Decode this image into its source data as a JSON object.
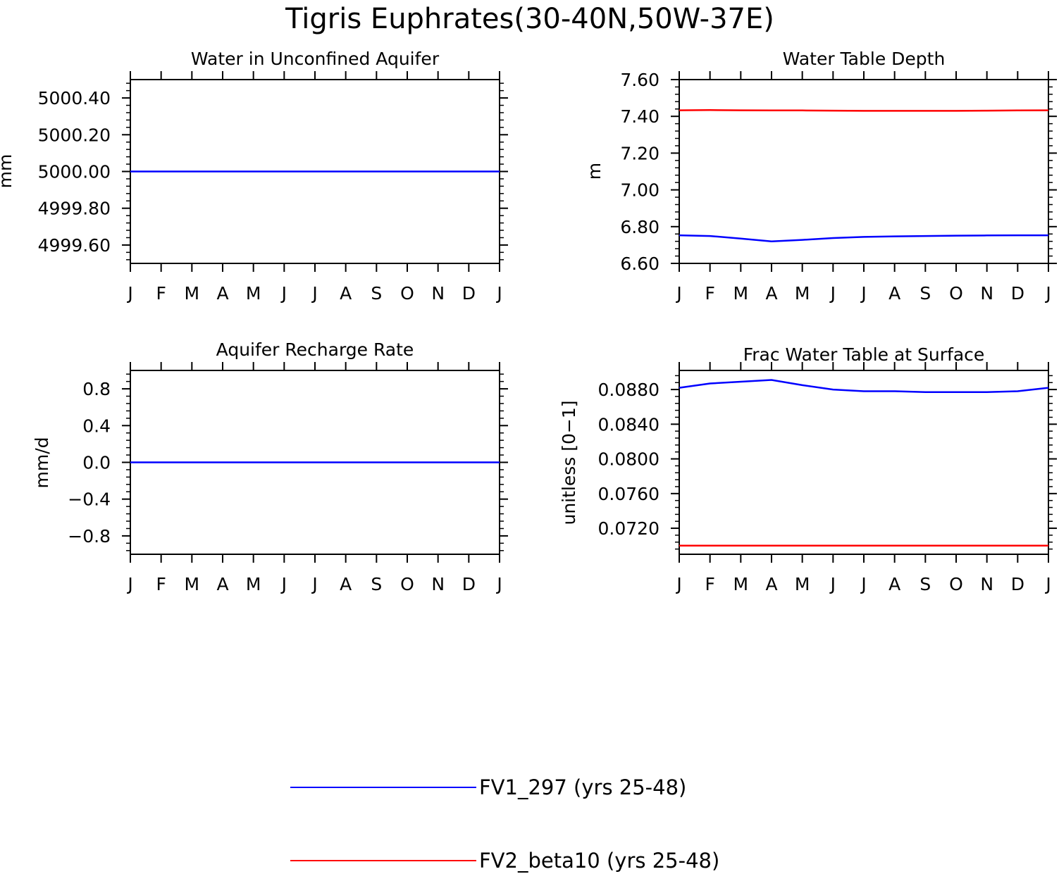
{
  "title": "Tigris Euphrates(30-40N,50W-37E)",
  "colors": {
    "FV1_297": "#0000ff",
    "FV2_beta10": "#ff0000",
    "axis": "#000000"
  },
  "legend": [
    {
      "key": "FV1_297",
      "label": "FV1_297 (yrs 25-48)"
    },
    {
      "key": "FV2_beta10",
      "label": "FV2_beta10 (yrs 25-48)"
    }
  ],
  "chart_data": [
    {
      "type": "line",
      "title": "Water in Unconfined Aquifer",
      "ylabel": "mm",
      "xlabel": "",
      "categories": [
        "J",
        "F",
        "M",
        "A",
        "M",
        "J",
        "J",
        "A",
        "S",
        "O",
        "N",
        "D",
        "J"
      ],
      "ylim": [
        4999.5,
        5000.5
      ],
      "yticks": [
        4999.6,
        4999.8,
        5000.0,
        5000.2,
        5000.4
      ],
      "ytick_labels": [
        "4999.60",
        "4999.80",
        "5000.00",
        "5000.20",
        "5000.40"
      ],
      "series": [
        {
          "name": "FV1_297",
          "values": [
            5000,
            5000,
            5000,
            5000,
            5000,
            5000,
            5000,
            5000,
            5000,
            5000,
            5000,
            5000,
            5000
          ]
        }
      ]
    },
    {
      "type": "line",
      "title": "Water Table Depth",
      "ylabel": "m",
      "xlabel": "",
      "categories": [
        "J",
        "F",
        "M",
        "A",
        "M",
        "J",
        "J",
        "A",
        "S",
        "O",
        "N",
        "D",
        "J"
      ],
      "ylim": [
        6.6,
        7.6
      ],
      "yticks": [
        6.6,
        6.8,
        7.0,
        7.2,
        7.4,
        7.6
      ],
      "ytick_labels": [
        "6.60",
        "6.80",
        "7.00",
        "7.20",
        "7.40",
        "7.60"
      ],
      "series": [
        {
          "name": "FV1_297",
          "values": [
            6.753,
            6.749,
            6.735,
            6.72,
            6.728,
            6.738,
            6.744,
            6.747,
            6.749,
            6.751,
            6.752,
            6.753,
            6.753
          ]
        },
        {
          "name": "FV2_beta10",
          "values": [
            7.433,
            7.434,
            7.433,
            7.432,
            7.432,
            7.431,
            7.43,
            7.43,
            7.43,
            7.43,
            7.431,
            7.432,
            7.433
          ]
        }
      ]
    },
    {
      "type": "line",
      "title": "Aquifer Recharge Rate",
      "ylabel": "mm/d",
      "xlabel": "",
      "categories": [
        "J",
        "F",
        "M",
        "A",
        "M",
        "J",
        "J",
        "A",
        "S",
        "O",
        "N",
        "D",
        "J"
      ],
      "ylim": [
        -1.0,
        1.0
      ],
      "yticks": [
        -0.8,
        -0.4,
        0.0,
        0.4,
        0.8
      ],
      "ytick_labels": [
        "−0.8",
        "−0.4",
        "0.0",
        "0.4",
        "0.8"
      ],
      "series": [
        {
          "name": "FV1_297",
          "values": [
            0,
            0,
            0,
            0,
            0,
            0,
            0,
            0,
            0,
            0,
            0,
            0,
            0
          ]
        }
      ]
    },
    {
      "type": "line",
      "title": "Frac Water Table at Surface",
      "ylabel": "unitless [0−1]",
      "xlabel": "",
      "categories": [
        "J",
        "F",
        "M",
        "A",
        "M",
        "J",
        "J",
        "A",
        "S",
        "O",
        "N",
        "D",
        "J"
      ],
      "ylim": [
        0.069,
        0.0902
      ],
      "yticks": [
        0.072,
        0.076,
        0.08,
        0.084,
        0.088
      ],
      "ytick_labels": [
        "0.0720",
        "0.0760",
        "0.0800",
        "0.0840",
        "0.0880"
      ],
      "series": [
        {
          "name": "FV1_297",
          "values": [
            0.0882,
            0.0887,
            0.0889,
            0.0891,
            0.0885,
            0.088,
            0.0878,
            0.0878,
            0.0877,
            0.0877,
            0.0877,
            0.0878,
            0.0882
          ]
        },
        {
          "name": "FV2_beta10",
          "values": [
            0.07,
            0.07,
            0.07,
            0.07,
            0.07,
            0.07,
            0.07,
            0.07,
            0.07,
            0.07,
            0.07,
            0.07,
            0.07
          ]
        }
      ]
    }
  ]
}
